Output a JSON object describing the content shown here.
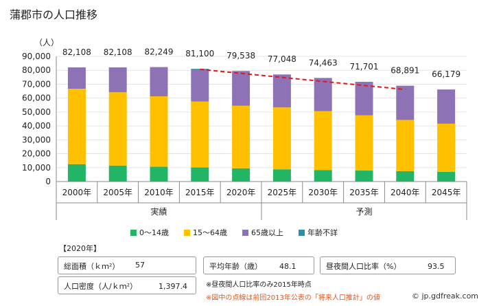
{
  "title": "蒲郡市の人口推移",
  "chart_data": {
    "type": "bar",
    "stacked": true,
    "ylabel": "（人）",
    "ylim": [
      0,
      90000
    ],
    "yticks": [
      "0",
      "10,000",
      "20,000",
      "30,000",
      "40,000",
      "50,000",
      "60,000",
      "70,000",
      "80,000",
      "90,000"
    ],
    "categories": [
      "2000年",
      "2005年",
      "2010年",
      "2015年",
      "2020年",
      "2025年",
      "2030年",
      "2035年",
      "2040年",
      "2045年"
    ],
    "totals_labels": [
      "82,108",
      "82,108",
      "82,249",
      "81,100",
      "79,538",
      "77,048",
      "74,463",
      "71,701",
      "68,891",
      "66,179"
    ],
    "totals": [
      82108,
      82108,
      82249,
      81100,
      79538,
      77048,
      74463,
      71701,
      68891,
      66179
    ],
    "series": [
      {
        "name": "0〜14歳",
        "color": "#22b566",
        "values": [
          12500,
          11500,
          10700,
          10100,
          9500,
          8800,
          8300,
          7900,
          7500,
          7000
        ]
      },
      {
        "name": "15〜64歳",
        "color": "#ffc000",
        "values": [
          54200,
          52700,
          50600,
          47500,
          45000,
          44500,
          42300,
          39700,
          36800,
          34600
        ]
      },
      {
        "name": "65歳以上",
        "color": "#8d73b5",
        "values": [
          15400,
          17900,
          21000,
          23100,
          25000,
          23700,
          23900,
          24100,
          24600,
          24600
        ]
      },
      {
        "name": "年齢不詳",
        "color": "#2e8fa3",
        "values": [
          0,
          0,
          0,
          400,
          0,
          0,
          0,
          0,
          0,
          0
        ]
      }
    ],
    "group_labels": [
      {
        "label": "実績",
        "from": 0,
        "to": 4
      },
      {
        "label": "予測",
        "from": 5,
        "to": 9
      }
    ],
    "previous_projection": {
      "color": "#e8141b",
      "x_from": "2015年",
      "x_to": "2040年",
      "values": [
        80700,
        66200
      ]
    }
  },
  "info": {
    "year_label": "【2020年】",
    "area_label": "総面積（ｋｍ²）",
    "area_value": "57",
    "avg_age_label": "平均年齢（歳）",
    "avg_age_value": "48.1",
    "day_night_label": "昼夜間人口比率（%）",
    "day_night_value": "93.5",
    "density_label": "人口密度（人/ｋｍ²）",
    "density_value": "1,397.4",
    "note1": "※昼夜間人口比率のみ2015年時点",
    "note2": "※図中の点線は前回2013年公表の「将来人口推計」の値"
  },
  "credit": "© jp.gdfreak.com"
}
